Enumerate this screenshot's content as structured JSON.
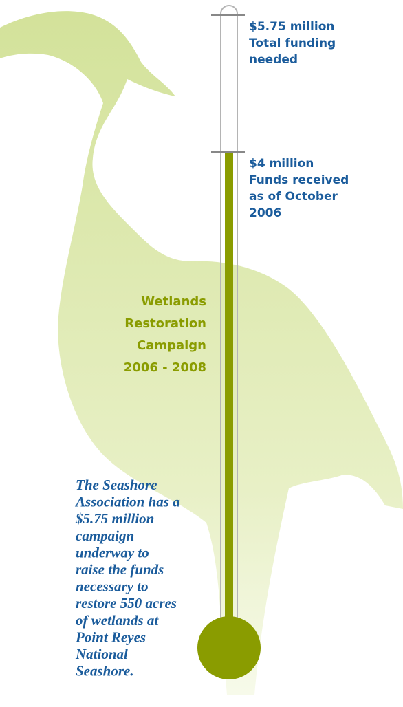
{
  "chart_data": {
    "type": "thermometer",
    "goal": {
      "value": 5.75,
      "label": "$5.75 million",
      "caption": [
        "Total funding",
        "needed"
      ]
    },
    "raised": {
      "value": 4,
      "label": "$4 million",
      "caption": [
        "Funds received",
        "as of October",
        "2006"
      ]
    },
    "title": [
      "Wetlands",
      "Restoration",
      "Campaign",
      "2006 - 2008"
    ],
    "note": [
      "The Seashore",
      "Association has a",
      "$5.75 million",
      "campaign",
      "underway to",
      "raise the funds",
      "necessary to",
      "restore 550 acres",
      "of wetlands at",
      "Point Reyes",
      "National",
      "Seashore."
    ],
    "fill_color": "#8a9c00",
    "label_color": "#1b5c9c"
  }
}
